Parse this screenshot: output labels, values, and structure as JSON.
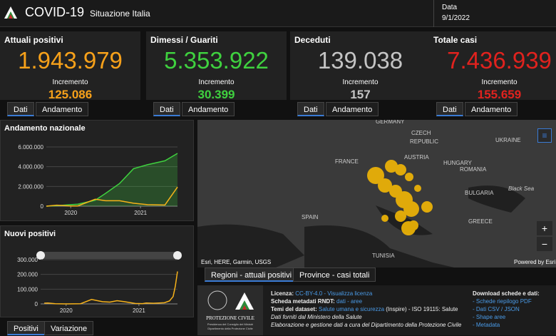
{
  "header": {
    "title": "COVID-19",
    "subtitle": "Situazione Italia",
    "date_label": "Data",
    "date": "9/1/2022"
  },
  "cards": [
    {
      "label": "Attuali positivi",
      "value": "1.943.979",
      "increment_label": "Incremento",
      "increment": "125.086",
      "color": "#f7a11a"
    },
    {
      "label": "Dimessi / Guariti",
      "value": "5.353.922",
      "increment_label": "Incremento",
      "increment": "30.399",
      "color": "#3fd13f"
    },
    {
      "label": "Deceduti",
      "value": "139.038",
      "increment_label": "Incremento",
      "increment": "157",
      "color": "#c4c4c4"
    },
    {
      "label": "Totale casi",
      "value": "7.436.939",
      "increment_label": "Incremento",
      "increment": "155.659",
      "color": "#e0221e"
    }
  ],
  "card_tabs": [
    "Dati",
    "Andamento"
  ],
  "andamento": {
    "type": "line",
    "title": "Andamento nazionale",
    "x": [
      2020.15,
      2020.3,
      2020.4,
      2020.5,
      2020.6,
      2020.85,
      2021.0,
      2021.2,
      2021.4,
      2021.6,
      2021.85,
      2022.03
    ],
    "xlim": [
      2020.15,
      2022.03
    ],
    "xticks": [
      {
        "value": 2020.5,
        "label": "2020"
      },
      {
        "value": 2021.5,
        "label": "2021"
      }
    ],
    "ylim": [
      0,
      6000000
    ],
    "yticks": [
      {
        "value": 0,
        "label": "0"
      },
      {
        "value": 2000000,
        "label": "2.000.000"
      },
      {
        "value": 4000000,
        "label": "4.000.000"
      },
      {
        "value": 6000000,
        "label": "6.000.000"
      }
    ],
    "series": [
      {
        "color": "#3fd13f",
        "values": [
          0,
          50000,
          100000,
          150000,
          200000,
          600000,
          1300000,
          2300000,
          3800000,
          4200000,
          4600000,
          5350000
        ]
      },
      {
        "color": "#f7b21a",
        "values": [
          0,
          100000,
          60000,
          20000,
          20000,
          700000,
          550000,
          550000,
          300000,
          150000,
          120000,
          1940000
        ]
      }
    ]
  },
  "nuovi": {
    "type": "line",
    "title": "Nuovi positivi",
    "x": [
      2020.2,
      2020.25,
      2020.35,
      2020.5,
      2020.7,
      2020.85,
      2020.95,
      2021.0,
      2021.1,
      2021.2,
      2021.3,
      2021.45,
      2021.55,
      2021.6,
      2021.7,
      2021.85,
      2021.92,
      2021.97,
      2022.0,
      2022.03
    ],
    "xlim": [
      2020.15,
      2022.03
    ],
    "xticks": [
      {
        "value": 2020.5,
        "label": "2020"
      },
      {
        "value": 2021.5,
        "label": "2021"
      }
    ],
    "ylim": [
      0,
      300000
    ],
    "yticks": [
      {
        "value": 0,
        "label": "0"
      },
      {
        "value": 100000,
        "label": "100.000"
      },
      {
        "value": 200000,
        "label": "200.000"
      },
      {
        "value": 300000,
        "label": "300.000"
      }
    ],
    "series": [
      {
        "color": "#f7b21a",
        "values": [
          5000,
          6000,
          1500,
          300,
          1500,
          30000,
          20000,
          15000,
          12000,
          22000,
          15000,
          3000,
          2000,
          6000,
          4000,
          8000,
          20000,
          50000,
          120000,
          220000
        ]
      }
    ]
  },
  "chart_tabs": [
    "Positivi",
    "Variazione"
  ],
  "map": {
    "labels": [
      "GERMANY",
      "CZECH",
      "REPUBLIC",
      "UKRAINE",
      "AUSTRIA",
      "HUNGARY",
      "FRANCE",
      "ROMANIA",
      "BULGARIA",
      "Black Sea",
      "SPAIN",
      "GREECE",
      "TUNISIA"
    ],
    "attribution": "Esri, HERE, Garmin, USGS",
    "powered": "Powered by Esri",
    "zoom_in": "+",
    "zoom_out": "−",
    "tabs": [
      "Regioni - attuali positivi",
      "Province - casi totali"
    ]
  },
  "footer": {
    "logo_title": "PROTEZIONE CIVILE",
    "logo_sub1": "Presidenza del Consiglio dei Ministri",
    "logo_sub2": "Dipartimento della Protezione Civile",
    "lines": [
      [
        "Licenza: ",
        "CC-BY-4.0 - Visualizza licenza"
      ],
      [
        "Scheda metadati RNDT: ",
        "dati - aree"
      ],
      [
        "Temi del dataset: ",
        "Salute umana e sicurezza",
        " (Inspire) - ISO 19115: Salute"
      ],
      [
        "Dati forniti dal Ministero della Salute"
      ],
      [
        "Elaborazione e gestione dati a cura del Dipartimento della Protezione Civile"
      ]
    ],
    "download_title": "Download schede e dati:",
    "downloads": [
      "- Schede riepilogo PDF",
      "- Dati CSV / JSON",
      "- Shape aree",
      "- Metadata"
    ]
  }
}
